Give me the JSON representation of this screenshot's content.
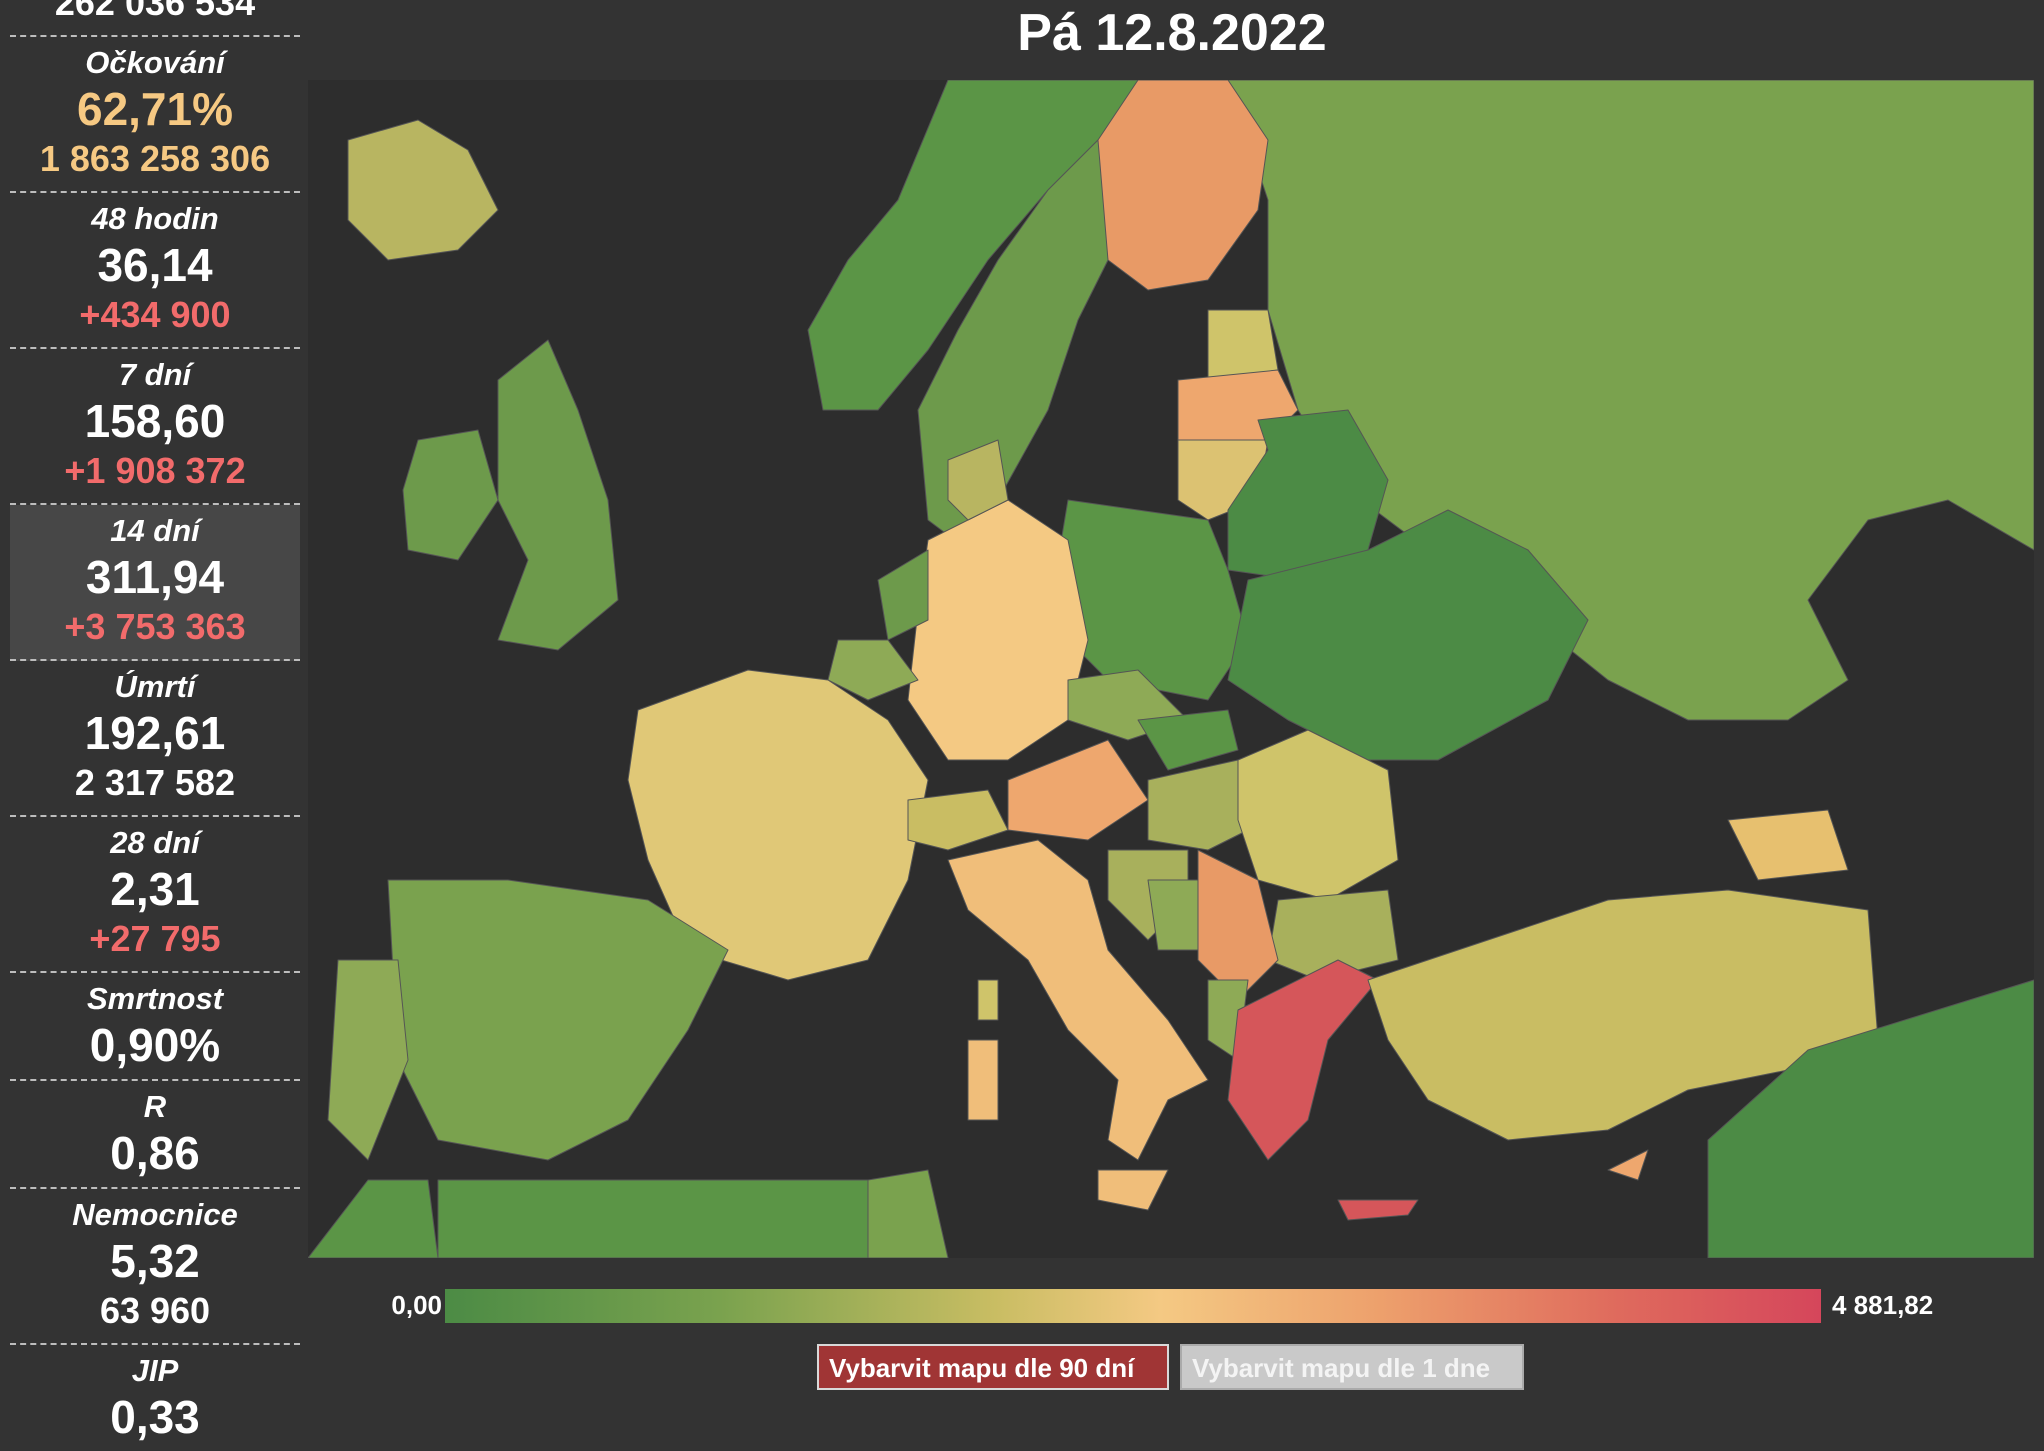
{
  "header": {
    "date": "Pá 12.8.2022"
  },
  "sidebar": {
    "top_count": "262 036 534",
    "stats": [
      {
        "label": "Očkování",
        "value": "62,71%",
        "sub": "1 863 258 306"
      },
      {
        "label": "48 hodin",
        "value": "36,14",
        "sub": "+434 900"
      },
      {
        "label": "7 dní",
        "value": "158,60",
        "sub": "+1 908 372"
      },
      {
        "label": "14 dní",
        "value": "311,94",
        "sub": "+3 753 363"
      },
      {
        "label": "Úmrtí",
        "value": "192,61",
        "sub": "2 317 582"
      },
      {
        "label": "28 dní",
        "value": "2,31",
        "sub": "+27 795"
      },
      {
        "label": "Smrtnost",
        "value": "0,90%"
      },
      {
        "label": "R",
        "value": "0,86"
      },
      {
        "label": "Nemocnice",
        "value": "5,32",
        "sub": "63 960"
      },
      {
        "label": "JIP",
        "value": "0,33"
      }
    ]
  },
  "legend": {
    "min": "0,00",
    "max": "4 881,82"
  },
  "buttons": {
    "color_90": "Vybarvit mapu dle 90 dní",
    "color_1": "Vybarvit mapu dle 1 dne"
  },
  "colors": {
    "background": "#333333",
    "sea": "#2d2d2d",
    "scale_low": "#4c8b45",
    "scale_mid": "#f4c983",
    "scale_high": "#d5465b",
    "accent_gold": "#f6c983",
    "accent_red": "#f26b6b",
    "button_active": "#a03535",
    "button_inactive": "#c9c9c9"
  }
}
